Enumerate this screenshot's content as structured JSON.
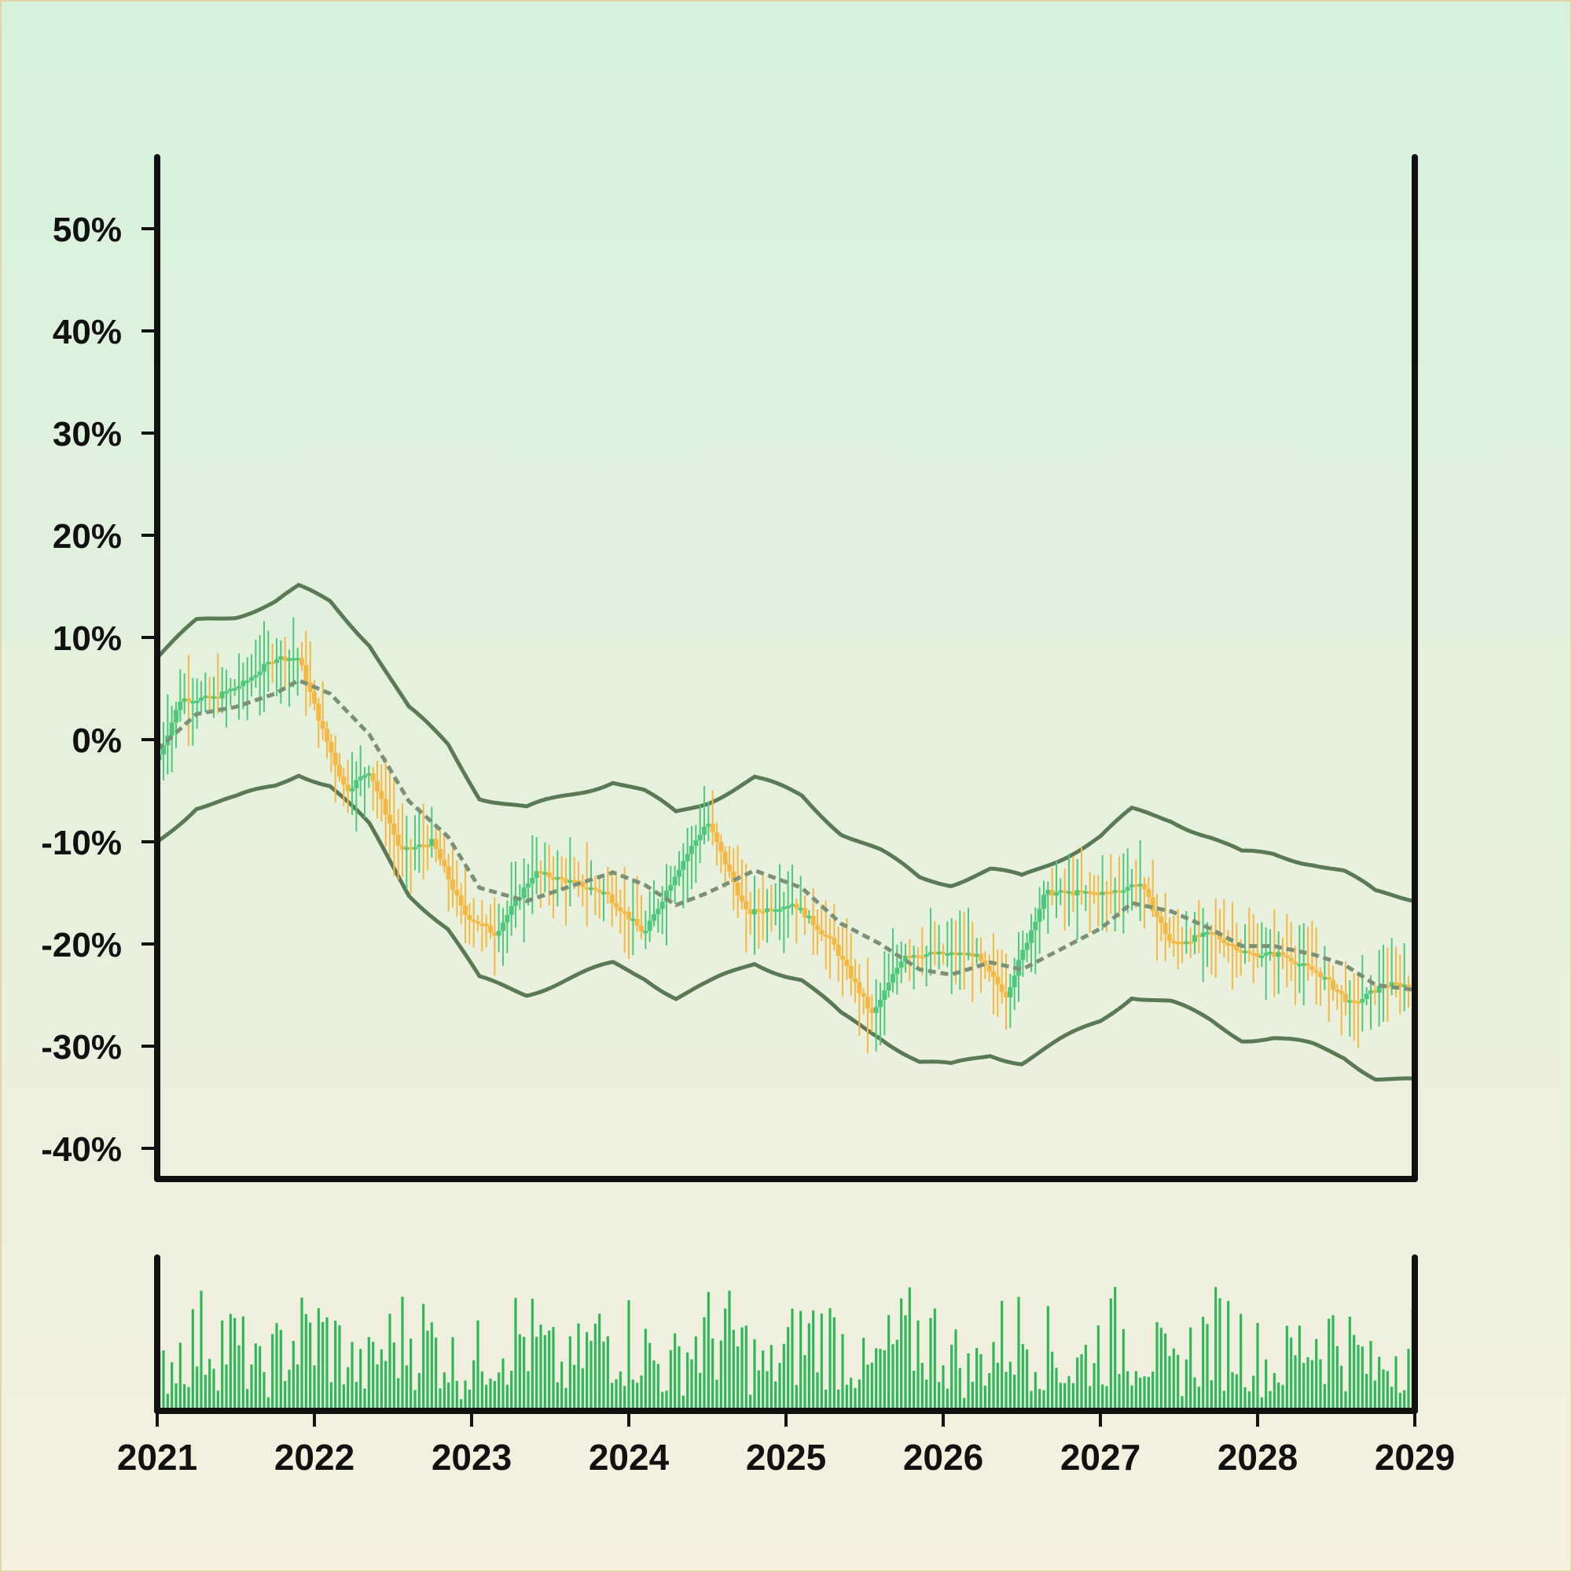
{
  "chart_data": {
    "type": "candlestick",
    "title": "",
    "xlabel": "",
    "ylabel": "",
    "y_tick_labels": [
      "50%",
      "40%",
      "30%",
      "20%",
      "10%",
      "0%",
      "-10%",
      "-20%",
      "-30%",
      "-40%"
    ],
    "y_ticks": [
      50,
      40,
      30,
      20,
      10,
      0,
      -10,
      -20,
      -30,
      -40
    ],
    "x_tick_labels": [
      "2021",
      "2022",
      "2023",
      "2024",
      "2025",
      "2026",
      "2027",
      "2028",
      "2029"
    ],
    "x_ticks": [
      2021,
      2022,
      2023,
      2024,
      2025,
      2026,
      2027,
      2028,
      2029
    ],
    "xlim": [
      2021,
      2029
    ],
    "ylim": [
      -43,
      57
    ],
    "grid": false,
    "colors": {
      "up": "#4cc97a",
      "down": "#f5b843",
      "band": "#5a7a55",
      "moving_average": "#7a9178",
      "volume": "#2fb85a",
      "axis": "#111111"
    },
    "moving_average_path": [
      [
        2021.0,
        -1.0
      ],
      [
        2021.25,
        2.5
      ],
      [
        2021.5,
        3.2
      ],
      [
        2021.75,
        4.5
      ],
      [
        2021.9,
        5.8
      ],
      [
        2022.1,
        4.5
      ],
      [
        2022.35,
        0.5
      ],
      [
        2022.6,
        -6.0
      ],
      [
        2022.85,
        -9.5
      ],
      [
        2023.05,
        -14.5
      ],
      [
        2023.35,
        -15.8
      ],
      [
        2023.6,
        -14.5
      ],
      [
        2023.9,
        -13.0
      ],
      [
        2024.1,
        -14.2
      ],
      [
        2024.3,
        -16.2
      ],
      [
        2024.5,
        -15.0
      ],
      [
        2024.8,
        -12.8
      ],
      [
        2025.1,
        -14.5
      ],
      [
        2025.35,
        -18.0
      ],
      [
        2025.6,
        -20.0
      ],
      [
        2025.85,
        -22.5
      ],
      [
        2026.05,
        -23.0
      ],
      [
        2026.3,
        -21.8
      ],
      [
        2026.5,
        -22.5
      ],
      [
        2026.75,
        -20.5
      ],
      [
        2027.0,
        -18.5
      ],
      [
        2027.2,
        -16.0
      ],
      [
        2027.45,
        -16.8
      ],
      [
        2027.7,
        -18.5
      ],
      [
        2027.9,
        -20.2
      ],
      [
        2028.1,
        -20.2
      ],
      [
        2028.35,
        -21.0
      ],
      [
        2028.55,
        -22.0
      ],
      [
        2028.75,
        -24.0
      ],
      [
        2029.0,
        -24.5
      ]
    ],
    "band_half_width": 9.0,
    "candle_path": [
      [
        2021.0,
        -2
      ],
      [
        2021.15,
        4
      ],
      [
        2021.35,
        4
      ],
      [
        2021.55,
        5.5
      ],
      [
        2021.75,
        8
      ],
      [
        2021.9,
        8
      ],
      [
        2022.05,
        1
      ],
      [
        2022.2,
        -5
      ],
      [
        2022.35,
        -3
      ],
      [
        2022.55,
        -11
      ],
      [
        2022.75,
        -10
      ],
      [
        2022.95,
        -17
      ],
      [
        2023.15,
        -19
      ],
      [
        2023.4,
        -13
      ],
      [
        2023.65,
        -14
      ],
      [
        2023.85,
        -15
      ],
      [
        2024.1,
        -19
      ],
      [
        2024.3,
        -13
      ],
      [
        2024.5,
        -8
      ],
      [
        2024.75,
        -17
      ],
      [
        2025.05,
        -16
      ],
      [
        2025.3,
        -20
      ],
      [
        2025.55,
        -27
      ],
      [
        2025.75,
        -21
      ],
      [
        2026.0,
        -21
      ],
      [
        2026.2,
        -21
      ],
      [
        2026.4,
        -25
      ],
      [
        2026.65,
        -15
      ],
      [
        2026.85,
        -15
      ],
      [
        2027.05,
        -15
      ],
      [
        2027.25,
        -14
      ],
      [
        2027.45,
        -20
      ],
      [
        2027.7,
        -19
      ],
      [
        2027.95,
        -21
      ],
      [
        2028.15,
        -21
      ],
      [
        2028.4,
        -23
      ],
      [
        2028.6,
        -26
      ],
      [
        2028.8,
        -24
      ],
      [
        2029.0,
        -24
      ]
    ],
    "volume_scale_max": 100
  }
}
